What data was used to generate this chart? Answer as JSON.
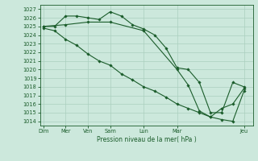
{
  "xlabel": "Pression niveau de la mer( hPa )",
  "bg_color": "#cce8dc",
  "grid_color": "#aacfbe",
  "line_color": "#1a5c2a",
  "ylim": [
    1013.5,
    1027.5
  ],
  "yticks": [
    1014,
    1015,
    1016,
    1017,
    1018,
    1019,
    1020,
    1021,
    1022,
    1023,
    1024,
    1025,
    1026,
    1027
  ],
  "tick_positions": [
    0,
    2,
    4,
    6,
    9,
    12,
    18
  ],
  "tick_labels": [
    "Dim",
    "Mer",
    "Ven",
    "Sam",
    "Lun",
    "Mar",
    "Jeu"
  ],
  "xlim": [
    -0.3,
    18.8
  ],
  "line1_x": [
    0,
    1,
    2,
    3,
    4,
    5,
    6,
    7,
    8,
    9,
    10,
    11,
    12,
    13,
    14,
    15,
    16,
    17,
    18
  ],
  "line1_y": [
    1025.0,
    1025.0,
    1026.2,
    1026.2,
    1026.0,
    1025.8,
    1026.7,
    1026.2,
    1025.2,
    1024.7,
    1024.0,
    1022.5,
    1020.2,
    1020.0,
    1018.5,
    1015.0,
    1015.0,
    1018.5,
    1018.0
  ],
  "line2_x": [
    0,
    1,
    2,
    3,
    4,
    5,
    6,
    7,
    8,
    9,
    10,
    11,
    12,
    13,
    14,
    15,
    16,
    17,
    18
  ],
  "line2_y": [
    1024.8,
    1024.5,
    1023.5,
    1022.8,
    1021.8,
    1021.0,
    1020.5,
    1019.5,
    1018.8,
    1018.0,
    1017.5,
    1016.8,
    1016.0,
    1015.5,
    1015.0,
    1014.5,
    1014.2,
    1014.0,
    1017.5
  ],
  "line3_x": [
    0,
    2,
    4,
    6,
    9,
    12,
    13,
    14,
    15,
    16,
    17,
    18
  ],
  "line3_y": [
    1025.0,
    1025.2,
    1025.5,
    1025.5,
    1024.5,
    1020.0,
    1018.2,
    1015.2,
    1014.5,
    1015.5,
    1016.0,
    1017.8
  ]
}
